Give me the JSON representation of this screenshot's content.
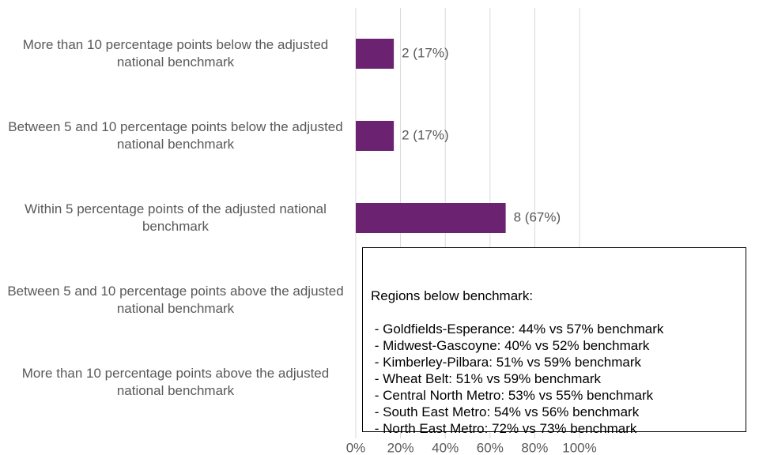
{
  "chart_data": {
    "type": "bar",
    "orientation": "horizontal",
    "categories": [
      "More than 10 percentage points below the adjusted national benchmark",
      "Between 5 and 10 percentage points below the adjusted national benchmark",
      "Within 5 percentage points of the adjusted national benchmark",
      "Between 5 and 10 percentage points above the adjusted national benchmark",
      "More than 10 percentage points above the adjusted national benchmark"
    ],
    "values": [
      17,
      17,
      67,
      0,
      0
    ],
    "value_labels": [
      "2 (17%)",
      "2 (17%)",
      "8 (67%)",
      null,
      null
    ],
    "color": "#6b2271",
    "xlim": [
      0,
      100
    ],
    "xticks": [
      {
        "value": 0,
        "label": "0%"
      },
      {
        "value": 20,
        "label": "20%"
      },
      {
        "value": 40,
        "label": "40%"
      },
      {
        "value": 60,
        "label": "60%"
      },
      {
        "value": 80,
        "label": "80%"
      },
      {
        "value": 100,
        "label": "100%"
      }
    ],
    "grid": true,
    "annotation": {
      "title": "Regions below benchmark:",
      "lines": [
        " - Goldfields-Esperance: 44% vs 57% benchmark",
        " - Midwest-Gascoyne: 40% vs 52% benchmark",
        " - Kimberley-Pilbara: 51% vs 59% benchmark",
        " - Wheat Belt: 51% vs 59% benchmark",
        " - Central North Metro: 53% vs 55% benchmark",
        " - South East Metro: 54% vs 56% benchmark",
        " - North East Metro: 72% vs 73% benchmark"
      ]
    }
  }
}
